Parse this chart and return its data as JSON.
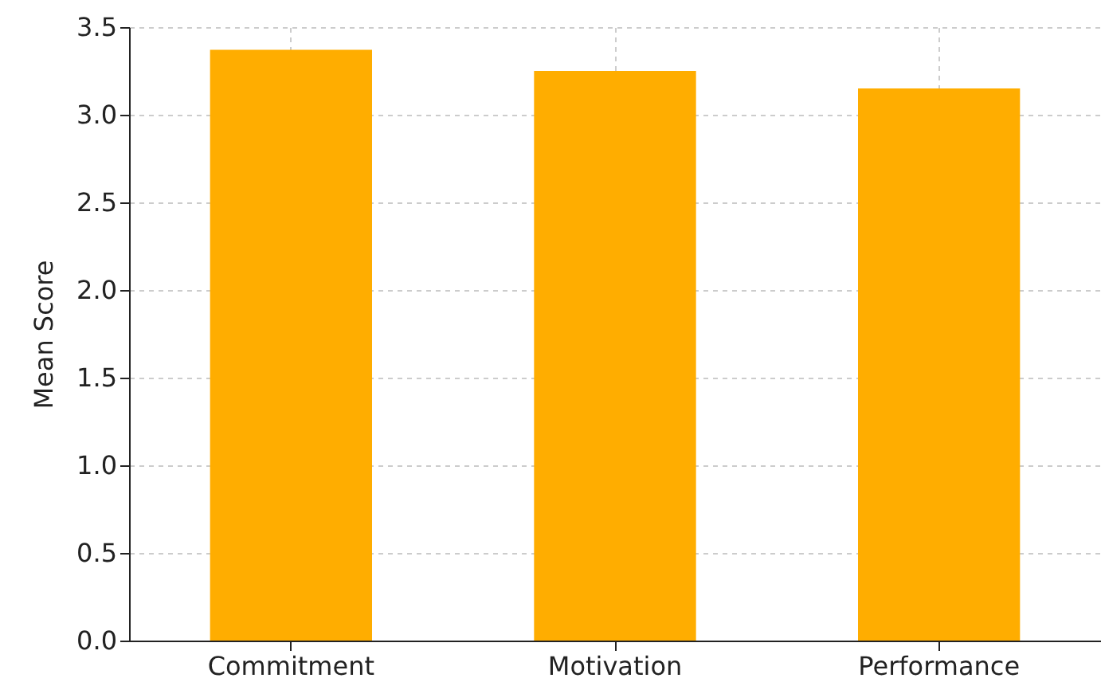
{
  "chart_data": {
    "type": "bar",
    "ylabel": "Mean Score",
    "categories": [
      "Commitment",
      "Motivation",
      "Performance"
    ],
    "values": [
      3.37,
      3.25,
      3.15
    ],
    "color": "#ffad00",
    "ylim": [
      0,
      3.5
    ],
    "yticks": [
      {
        "value": 0,
        "label": "0.0"
      },
      0.5,
      {
        "value": 1,
        "label": "1.0"
      },
      1.5,
      {
        "value": 2,
        "label": "2.0"
      },
      2.5,
      {
        "value": 3,
        "label": "3.0"
      },
      3.5
    ],
    "grid": true
  }
}
